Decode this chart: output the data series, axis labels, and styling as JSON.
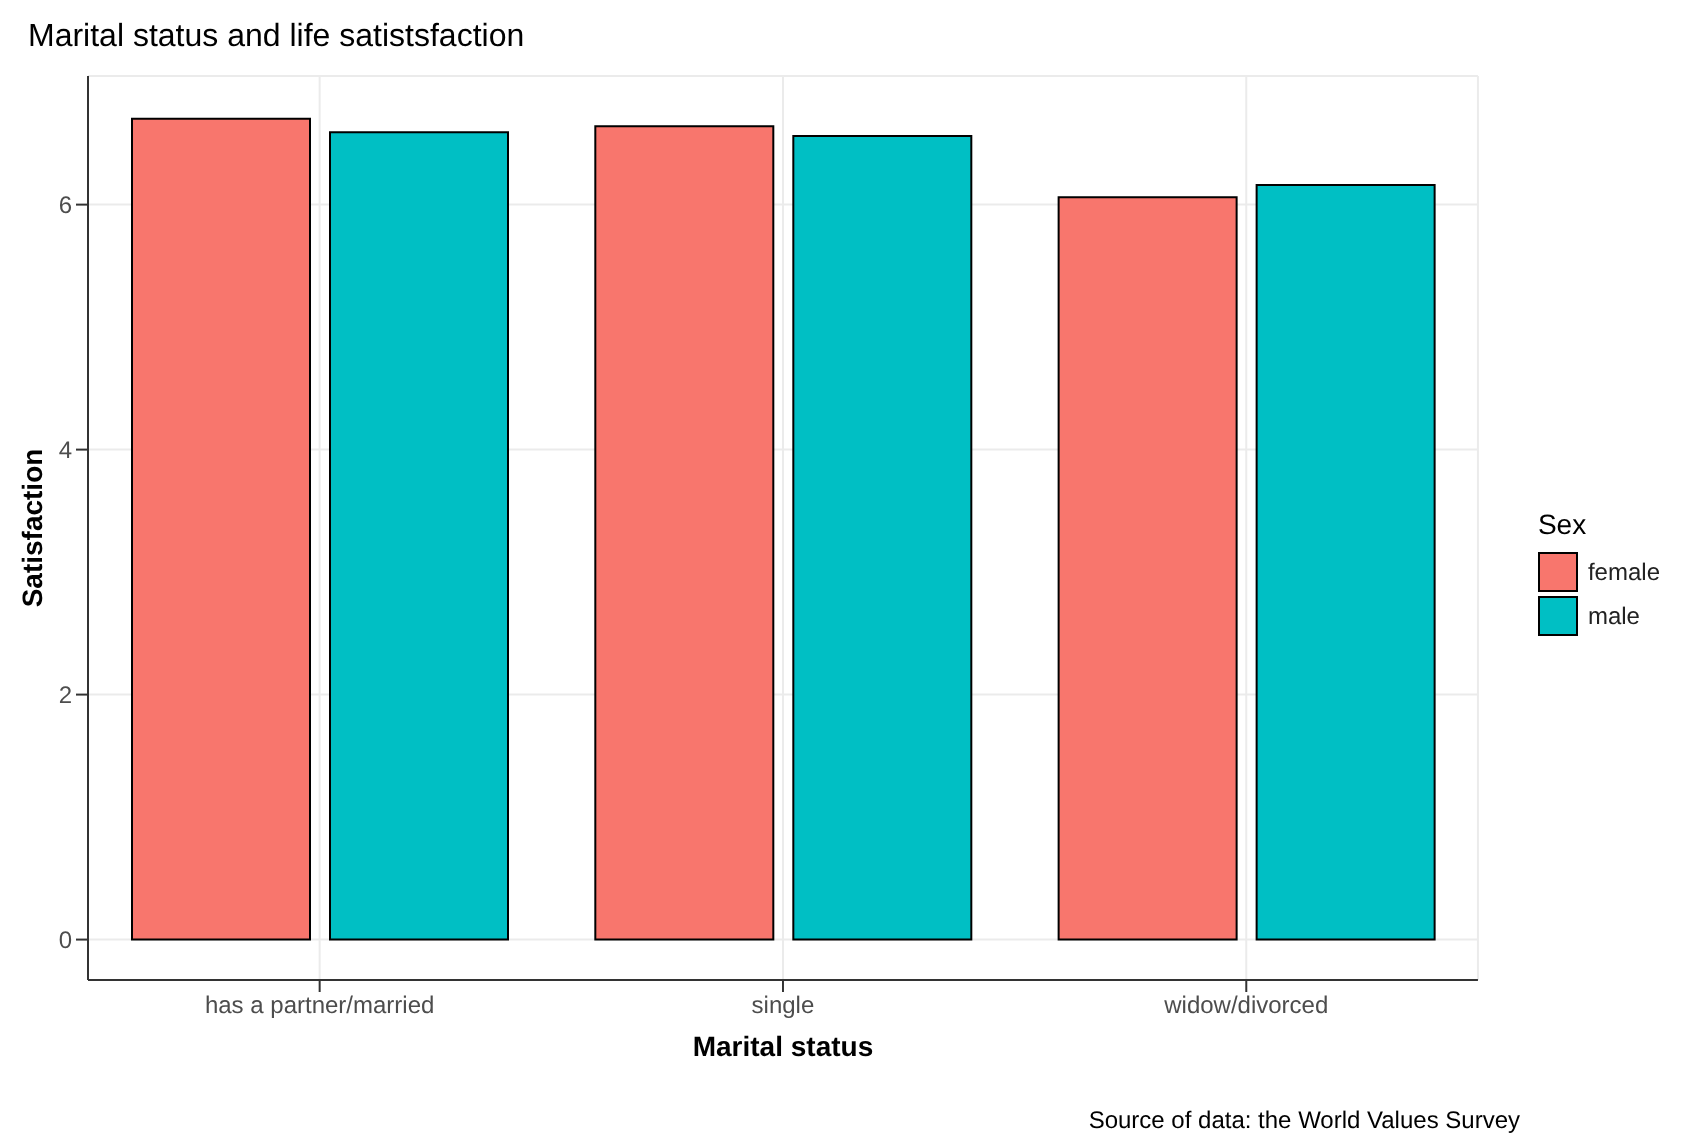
{
  "chart_data": {
    "type": "bar",
    "title": "Marital status and life satistsfaction",
    "xlabel": "Marital status",
    "ylabel": "Satisfaction",
    "legend_title": "Sex",
    "categories": [
      "has a partner/married",
      "single",
      "widow/divorced"
    ],
    "series": [
      {
        "name": "female",
        "color": "#f8766d",
        "values": [
          6.7,
          6.64,
          6.06
        ]
      },
      {
        "name": "male",
        "color": "#00bfc4",
        "values": [
          6.59,
          6.56,
          6.16
        ]
      }
    ],
    "ylim": [
      -0.33,
      7.05
    ],
    "yticks": [
      0,
      2,
      4,
      6
    ],
    "grid": true,
    "legend": "right",
    "annotations": [
      "Source of data: the World Values Survey"
    ]
  }
}
